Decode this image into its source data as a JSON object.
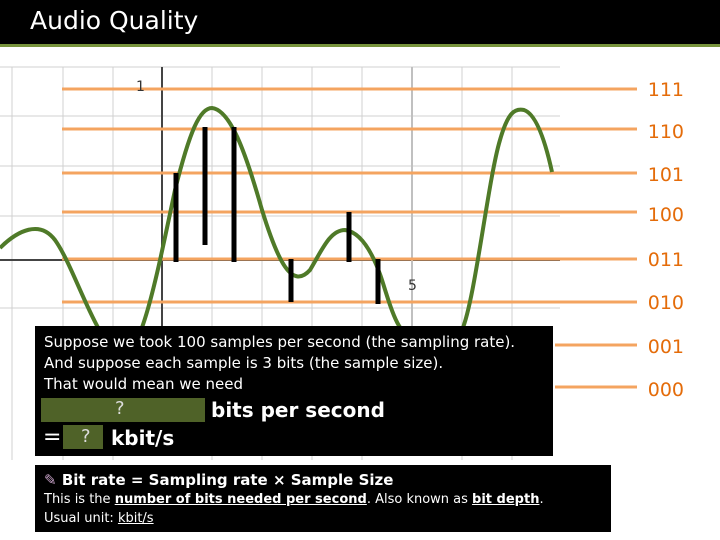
{
  "slide": {
    "title": "Audio Quality"
  },
  "graph": {
    "y_tick_top": "1",
    "x_tick": "5",
    "levels": [
      "111",
      "110",
      "101",
      "100",
      "011",
      "010",
      "001",
      "000"
    ]
  },
  "explanation": {
    "line1": "Suppose we took 100 samples per second (the sampling rate).",
    "line2": "And suppose each sample is 3 bits (the sample size).",
    "line3": "That would mean we need",
    "blank1": "?",
    "bits_label": "bits per second",
    "equals": "=",
    "blank2": "?",
    "kbit_label": "kbit/s"
  },
  "definition": {
    "icon": "pen-icon",
    "heading": "Bit rate = Sampling rate × Sample Size",
    "desc_pre": "This is the ",
    "desc_u1": "number of bits needed per second",
    "desc_mid": ". Also known as ",
    "desc_u2": "bit depth",
    "desc_post": ".",
    "unit_pre": "Usual unit: ",
    "unit_u": "kbit/s"
  },
  "colors": {
    "wave": "#4f7a28",
    "level_line": "#f4a460",
    "level_text": "#e46c0a",
    "accent": "#77933c"
  }
}
